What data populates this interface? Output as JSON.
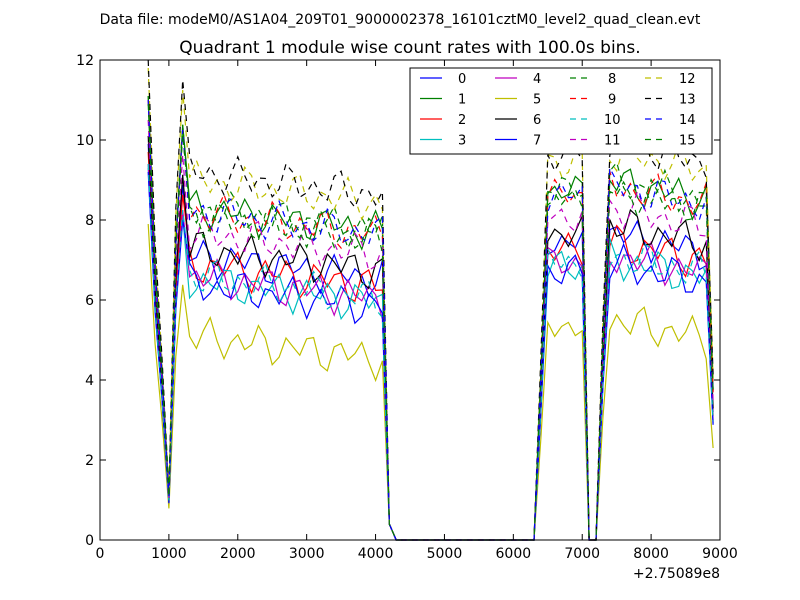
{
  "header": {
    "data_file": "Data file: modeM0/AS1A04_209T01_9000002378_16101cztM0_level2_quad_clean.evt"
  },
  "chart_data": {
    "type": "line",
    "title": "Quadrant 1 module wise count rates with 100.0s bins.",
    "xlabel": "",
    "ylabel": "",
    "xlim": [
      0,
      9000
    ],
    "ylim": [
      0,
      12
    ],
    "x_ticks": [
      0,
      1000,
      2000,
      3000,
      4000,
      5000,
      6000,
      7000,
      8000,
      9000
    ],
    "y_ticks": [
      0,
      2,
      4,
      6,
      8,
      10,
      12
    ],
    "x_offset_label": "+2.75089e8",
    "grid": false,
    "legend": {
      "placement": "top-right",
      "columns": 4
    },
    "x": [
      700,
      800,
      900,
      1000,
      1100,
      1200,
      1300,
      1400,
      1500,
      1600,
      1700,
      1800,
      1900,
      2000,
      2100,
      2200,
      2300,
      2400,
      2500,
      2600,
      2700,
      2800,
      2900,
      3000,
      3100,
      3200,
      3300,
      3400,
      3500,
      3600,
      3700,
      3800,
      3900,
      4000,
      4100,
      4200,
      4300,
      4400,
      4500,
      4600,
      4700,
      4800,
      4900,
      5000,
      5100,
      5200,
      5300,
      5400,
      5500,
      5600,
      5700,
      5800,
      5900,
      6000,
      6100,
      6200,
      6300,
      6400,
      6500,
      6600,
      6700,
      6800,
      6900,
      7000,
      7100,
      7200,
      7300,
      7400,
      7500,
      7600,
      7700,
      7800,
      7900,
      8000,
      8100,
      8200,
      8300,
      8400,
      8500,
      8600,
      8700,
      8800,
      8900
    ],
    "series": [
      {
        "name": "0",
        "color": "#0000ff",
        "dash": false,
        "base": 7.1,
        "ch": 0.05
      },
      {
        "name": "1",
        "color": "#008000",
        "dash": false,
        "base": 8.3,
        "ch": 0.1
      },
      {
        "name": "2",
        "color": "#ff0000",
        "dash": false,
        "base": 6.9,
        "ch": 0.05
      },
      {
        "name": "3",
        "color": "#00bfbf",
        "dash": false,
        "base": 6.5,
        "ch": 0.05
      },
      {
        "name": "4",
        "color": "#bf00bf",
        "dash": false,
        "base": 6.6,
        "ch": 0.05
      },
      {
        "name": "5",
        "color": "#bfbf00",
        "dash": false,
        "base": 5.1,
        "ch": 0.05
      },
      {
        "name": "6",
        "color": "#000000",
        "dash": false,
        "base": 7.3,
        "ch": 0.05
      },
      {
        "name": "7",
        "color": "#0000ff",
        "dash": false,
        "base": 6.4,
        "ch": 0.05
      },
      {
        "name": "8",
        "color": "#008000",
        "dash": true,
        "base": 8.3,
        "ch": 0.1
      },
      {
        "name": "9",
        "color": "#ff0000",
        "dash": true,
        "base": 8.2,
        "ch": 0.1
      },
      {
        "name": "10",
        "color": "#00bfbf",
        "dash": true,
        "base": 6.6,
        "ch": 0.05
      },
      {
        "name": "11",
        "color": "#bf00bf",
        "dash": true,
        "base": 7.7,
        "ch": 0.1
      },
      {
        "name": "12",
        "color": "#bfbf00",
        "dash": true,
        "base": 9.0,
        "ch": 0.15
      },
      {
        "name": "13",
        "color": "#000000",
        "dash": true,
        "base": 9.2,
        "ch": 0.15
      },
      {
        "name": "14",
        "color": "#0000ff",
        "dash": true,
        "base": 8.2,
        "ch": 0.1
      },
      {
        "name": "15",
        "color": "#008000",
        "dash": true,
        "base": 8.1,
        "ch": 0.1
      }
    ]
  }
}
